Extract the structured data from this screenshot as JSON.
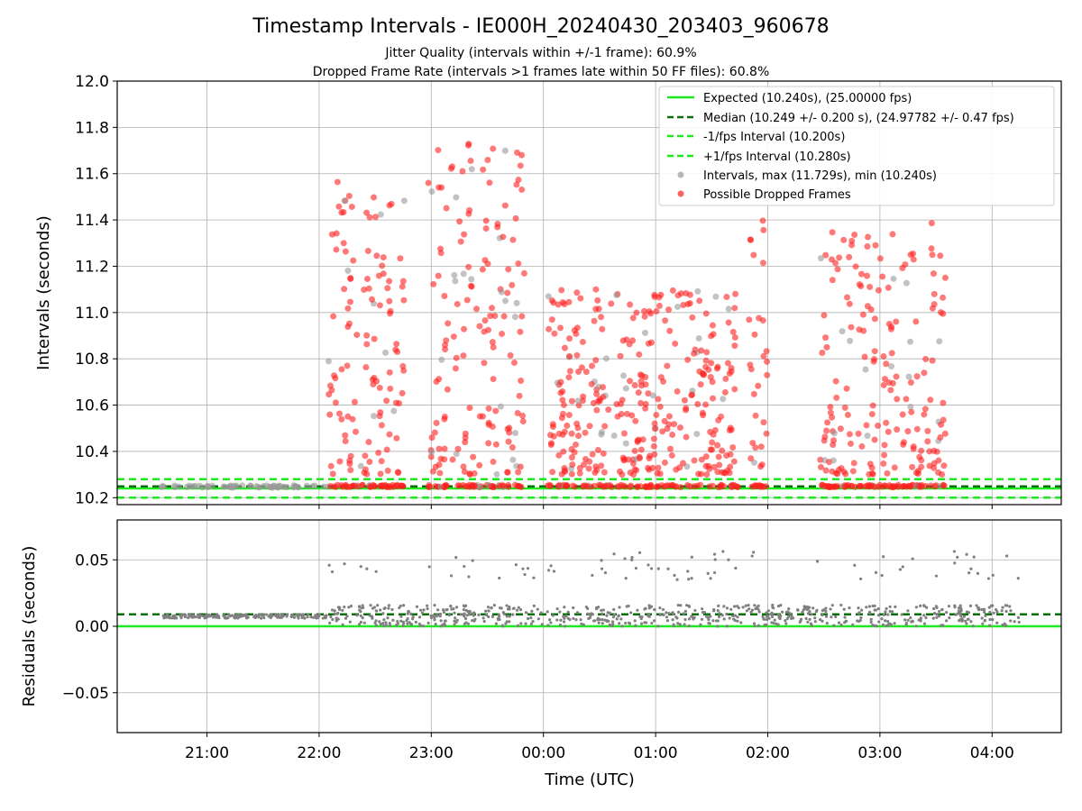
{
  "chart_data": {
    "type": "scatter",
    "title": "Timestamp Intervals - IE000H_20240430_203403_960678",
    "subtitle_lines": [
      "Jitter Quality (intervals within +/-1 frame): 60.9%",
      "Dropped Frame Rate (intervals >1 frames late within 50 FF files): 60.8%"
    ],
    "x_axis": {
      "label": "Time (UTC)",
      "ticks": [
        {
          "label": "21:00",
          "value": "2024-04-30 21:00"
        },
        {
          "label": "22:00",
          "value": "2024-04-30 22:00"
        },
        {
          "label": "23:00",
          "value": "2024-04-30 23:00"
        },
        {
          "label": "00:00",
          "value": "2024-05-01 00:00"
        },
        {
          "label": "01:00",
          "value": "2024-05-01 01:00"
        },
        {
          "label": "02:00",
          "value": "2024-05-01 02:00"
        },
        {
          "label": "03:00",
          "value": "2024-05-01 03:00"
        },
        {
          "label": "04:00",
          "value": "2024-05-01 04:00"
        }
      ],
      "range": [
        "2024-04-30 20:12",
        "2024-05-01 04:37"
      ]
    },
    "top_panel": {
      "ylabel": "Intervals (seconds)",
      "ylim": [
        10.17,
        12.0
      ],
      "yticks": [
        "10.2",
        "10.4",
        "10.6",
        "10.8",
        "11.0",
        "11.2",
        "11.4",
        "11.6",
        "11.8",
        "12.0"
      ],
      "grid": true,
      "legend_position": "top-right",
      "reference_lines": [
        {
          "name": "Expected (10.240s), (25.00000 fps)",
          "y": 10.24,
          "style": "solid",
          "color": "#1ee81e"
        },
        {
          "name": "Median (10.249 +/- 0.200 s), (24.97782 +/- 0.47 fps)",
          "y": 10.249,
          "style": "dashed",
          "color": "#0a6e0a"
        },
        {
          "name": "-1/fps Interval (10.200s)",
          "y": 10.2,
          "style": "dashed",
          "color": "#1ee81e"
        },
        {
          "name": "+1/fps Interval (10.280s)",
          "y": 10.28,
          "style": "dashed",
          "color": "#1ee81e"
        }
      ],
      "scatter_series": [
        {
          "name": "Intervals, max (11.729s), min (10.240s)",
          "color": "#999999"
        },
        {
          "name": "Possible Dropped Frames",
          "color": "#ff2020"
        }
      ],
      "data_summary": {
        "max_interval_s": 11.729,
        "min_interval_s": 10.24,
        "cluster_blocks": [
          {
            "from": "2024-04-30 22:05",
            "to": "2024-04-30 22:46",
            "y_min": 10.24,
            "y_max": 11.62
          },
          {
            "from": "2024-04-30 22:58",
            "to": "2024-04-30 23:50",
            "y_min": 10.24,
            "y_max": 11.73
          },
          {
            "from": "2024-05-01 00:02",
            "to": "2024-05-01 01:45",
            "y_min": 10.24,
            "y_max": 11.1
          },
          {
            "from": "2024-05-01 01:50",
            "to": "2024-05-01 02:00",
            "y_min": 10.24,
            "y_max": 11.46
          },
          {
            "from": "2024-05-01 02:28",
            "to": "2024-05-01 03:10",
            "y_min": 10.24,
            "y_max": 11.35
          },
          {
            "from": "2024-05-01 03:12",
            "to": "2024-05-01 03:35",
            "y_min": 10.24,
            "y_max": 11.45
          }
        ]
      }
    },
    "bottom_panel": {
      "ylabel": "Residuals (seconds)",
      "ylim": [
        -0.08,
        0.08
      ],
      "yticks": [
        "0.05",
        "0.00",
        "−0.05"
      ],
      "grid": true,
      "reference_lines": [
        {
          "y": 0.0,
          "style": "solid",
          "color": "#1ee81e"
        },
        {
          "y": 0.009,
          "style": "dashed",
          "color": "#0a6e0a"
        }
      ],
      "scatter_color": "#808080"
    }
  }
}
